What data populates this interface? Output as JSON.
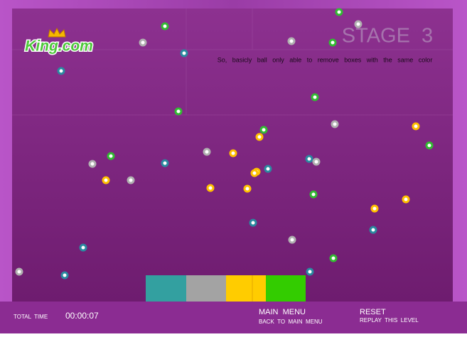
{
  "logo": "King.com",
  "stage": "STAGE  3",
  "instruction": "So, basicly ball only able to remove boxes with the same color",
  "footer": {
    "total_time_label": "TOTAL  TIME",
    "total_time": "00:00:07",
    "main_menu": "MAIN  MENU",
    "main_menu_sub": "BACK  TO  MAIN  MENU",
    "reset": "RESET",
    "reset_sub": "REPLAY  THIS  LEVEL"
  }
}
